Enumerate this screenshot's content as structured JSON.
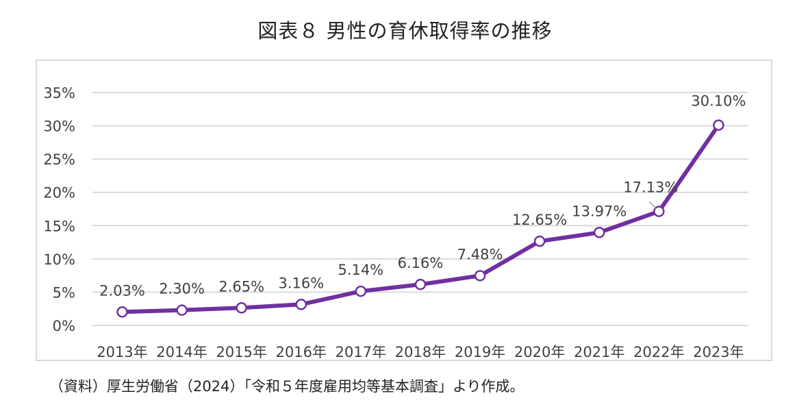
{
  "title": "図表８ 男性の育休取得率の推移",
  "source": "（資料）厚生労働省（2024）「令和５年度雇用均等基本調査」より作成。",
  "colors": {
    "line": "#7030a0",
    "grid": "#d9d9d9",
    "text": "#404040"
  },
  "chart_data": {
    "type": "line",
    "title": "",
    "xlabel": "",
    "ylabel": "",
    "categories": [
      "2013年",
      "2014年",
      "2015年",
      "2016年",
      "2017年",
      "2018年",
      "2019年",
      "2020年",
      "2021年",
      "2022年",
      "2023年"
    ],
    "series": [
      {
        "values": [
          2.03,
          2.3,
          2.65,
          3.16,
          5.14,
          6.16,
          7.48,
          12.65,
          13.97,
          17.13,
          30.1
        ]
      }
    ],
    "data_labels": [
      "2.03%",
      "2.30%",
      "2.65%",
      "3.16%",
      "5.14%",
      "6.16%",
      "7.48%",
      "12.65%",
      "13.97%",
      "17.13%",
      "30.10%"
    ],
    "yticks": [
      0,
      5,
      10,
      15,
      20,
      25,
      30,
      35
    ],
    "ytick_labels": [
      "0%",
      "5%",
      "10%",
      "15%",
      "20%",
      "25%",
      "30%",
      "35%"
    ],
    "ylim": [
      0,
      35
    ],
    "grid": true,
    "legend": "none",
    "marker": "hollow-circle"
  }
}
